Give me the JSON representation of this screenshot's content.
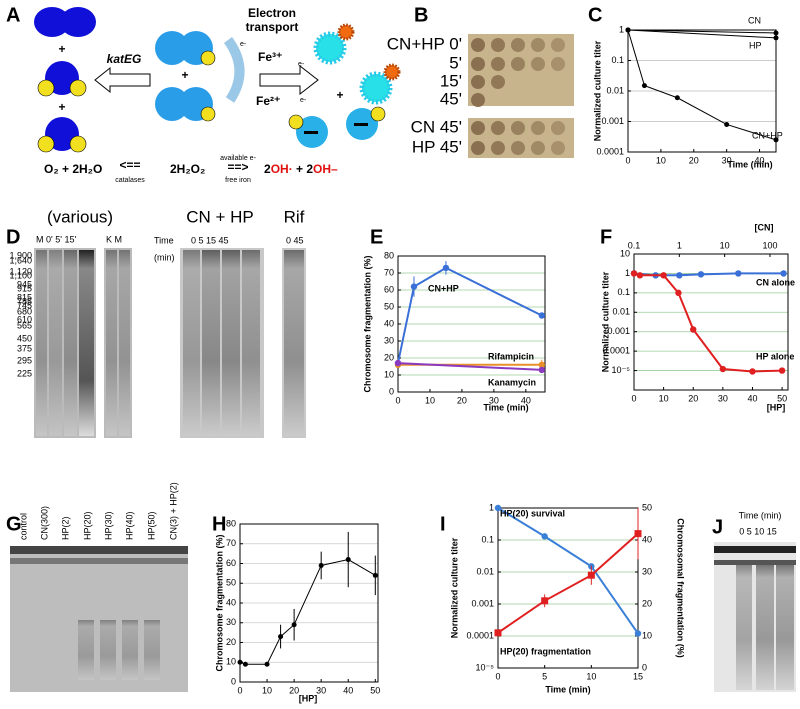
{
  "panels": {
    "letters": [
      "A",
      "B",
      "C",
      "D",
      "E",
      "F",
      "G",
      "H",
      "I",
      "J"
    ],
    "A": {
      "katEG": "katEG",
      "transport": [
        "Electron",
        "transport"
      ],
      "fe3": "Fe³⁺",
      "fe2": "Fe²⁺",
      "electron": "e-",
      "plus": "+",
      "left": "O₂ + 2H₂O",
      "back": "<==",
      "catalases": "catalases",
      "peroxide": "2H₂O₂",
      "available": "available e-",
      "forward": "==>",
      "iron": "free iron",
      "products": [
        "2",
        "OH·",
        " + 2",
        "OH–"
      ]
    },
    "B": {
      "rows": [
        "CN+HP 0'",
        "5'",
        "15'",
        "45'",
        "CN 45'",
        "HP 45'"
      ]
    },
    "D": {
      "various": "(various)",
      "lanes1": "M 0' 5' 15'",
      "lanes2": "K M",
      "cnhp": "CN + HP",
      "time": "Time",
      "min": "(min)",
      "times": "0 5 15 45",
      "rif": "Rif",
      "rif_times": "0 45",
      "ladder": [
        "1,900",
        "1,640",
        "1,120",
        "1,100",
        "945",
        "915",
        "815",
        "785",
        "745",
        "680",
        "610",
        "565",
        "450",
        "375",
        "295",
        "225"
      ]
    },
    "G": {
      "lanes": [
        "control",
        "CN(300)",
        "HP(2)",
        "HP(20)",
        "HP(30)",
        "HP(40)",
        "HP(50)",
        "CN(3) + HP(2)"
      ]
    },
    "J": {
      "time": "Time (min)",
      "lanes": "0 5 10 15"
    }
  },
  "chart_data": [
    {
      "type": "line",
      "ylabel": "Normalized culture titer",
      "xlabel": "Time (min)",
      "ylog": true,
      "xlim": [
        0,
        45
      ],
      "ylim": [
        0.0001,
        1
      ],
      "xticks": [
        0,
        10,
        20,
        30,
        40
      ],
      "yticks": [
        1,
        0.1,
        0.01,
        0.001,
        0.0001
      ],
      "grid": true,
      "grid_color": "#bbbbbb",
      "series": [
        {
          "name": "CN",
          "color": "#000000",
          "x": [
            0,
            45
          ],
          "values": [
            1,
            0.8
          ]
        },
        {
          "name": "HP",
          "color": "#000000",
          "x": [
            0,
            45
          ],
          "values": [
            1,
            0.55
          ]
        },
        {
          "name": "CN+HP",
          "color": "#000000",
          "x": [
            0,
            5,
            15,
            30,
            45
          ],
          "values": [
            1,
            0.015,
            0.006,
            0.0008,
            0.00025
          ]
        }
      ]
    },
    {
      "type": "line",
      "ylabel": "Chromosome fragmentation (%)",
      "xlabel": "Time (min)",
      "xlim": [
        0,
        46
      ],
      "ylim": [
        0,
        80
      ],
      "xticks": [
        0,
        10,
        20,
        30,
        40
      ],
      "yticks": [
        0,
        10,
        20,
        30,
        40,
        50,
        60,
        70,
        80
      ],
      "grid": true,
      "grid_color": "#99cc99",
      "series": [
        {
          "name": "CN+HP",
          "color": "#3a6fd8",
          "x": [
            0,
            5,
            15,
            45
          ],
          "values": [
            17,
            62,
            73,
            45
          ],
          "errors": [
            1,
            6,
            4,
            1
          ]
        },
        {
          "name": "Rifampicin",
          "color": "#e8902a",
          "x": [
            0,
            45
          ],
          "values": [
            16,
            16
          ],
          "errors": [
            1,
            3
          ]
        },
        {
          "name": "Kanamycin",
          "color": "#8a3ac0",
          "x": [
            0,
            45
          ],
          "values": [
            17,
            13
          ]
        }
      ]
    },
    {
      "type": "line",
      "ylabel": "Normalized culture titer",
      "xlabel": "[HP]",
      "x2label": "[CN]",
      "ylog": true,
      "x2log": true,
      "xlim": [
        0,
        52
      ],
      "x2lim": [
        0.1,
        250
      ],
      "ylim": [
        1e-06,
        10
      ],
      "xticks": [
        0,
        10,
        20,
        30,
        40,
        50
      ],
      "x2ticks": [
        0.1,
        1,
        10,
        100
      ],
      "yticks": [
        10,
        1,
        0.1,
        0.01,
        0.001,
        0.0001,
        {
          "value": 1e-05,
          "label": "10⁻⁵"
        }
      ],
      "grid": true,
      "grid_color": "#99cc99",
      "series": [
        {
          "name": "CN alone",
          "color": "#3a6fd8",
          "axis": "x2",
          "x": [
            0.1,
            0.3,
            1,
            3,
            20,
            200
          ],
          "values": [
            1,
            0.8,
            0.8,
            0.9,
            1,
            1
          ]
        },
        {
          "name": "HP alone",
          "color": "#e02020",
          "x": [
            0,
            2,
            10,
            15,
            20,
            30,
            40,
            50
          ],
          "values": [
            1,
            0.8,
            0.8,
            0.1,
            0.0013,
            1.2e-05,
            9e-06,
            1e-05
          ]
        }
      ]
    },
    {
      "type": "line",
      "ylabel": "Chromosome fragmentation (%)",
      "xlabel": "[HP]",
      "xlim": [
        0,
        51
      ],
      "ylim": [
        0,
        80
      ],
      "xticks": [
        0,
        10,
        20,
        30,
        40,
        50
      ],
      "yticks": [
        0,
        10,
        20,
        30,
        40,
        50,
        60,
        70,
        80
      ],
      "grid": true,
      "grid_color": "#cccccc",
      "series": [
        {
          "color": "#000000",
          "x": [
            0,
            2,
            10,
            15,
            20,
            30,
            40,
            50
          ],
          "values": [
            10,
            9,
            9,
            23,
            29,
            59,
            62,
            54
          ],
          "errors": [
            2,
            1,
            1,
            6,
            8,
            7,
            14,
            10
          ]
        }
      ]
    },
    {
      "type": "line",
      "ylabel": "Normalized culture titer",
      "y2label": "Chromosomal fragmentation (%)",
      "xlabel": "Time (min)",
      "ylog": true,
      "xlim": [
        0,
        15
      ],
      "ylim": [
        1e-05,
        1
      ],
      "y2lim": [
        0,
        50
      ],
      "xticks": [
        0,
        5,
        10,
        15
      ],
      "yticks": [
        1,
        0.1,
        0.01,
        0.001,
        0.0001,
        {
          "value": 1e-05,
          "label": "10⁻⁵"
        }
      ],
      "y2ticks": [
        0,
        10,
        20,
        30,
        40,
        50
      ],
      "grid": true,
      "grid_color": "#99cc99",
      "series": [
        {
          "name": "HP(20) survival",
          "color": "#3a7fd8",
          "x": [
            0,
            5,
            10,
            15
          ],
          "values": [
            1,
            0.13,
            0.015,
            0.00012
          ]
        },
        {
          "name": "HP(20) fragmentation",
          "color": "#e02020",
          "axis": "y2",
          "marker": "square",
          "x": [
            0,
            5,
            10,
            15
          ],
          "values": [
            11,
            21,
            29,
            42
          ],
          "errors": [
            1,
            2,
            3,
            8
          ]
        }
      ]
    }
  ]
}
